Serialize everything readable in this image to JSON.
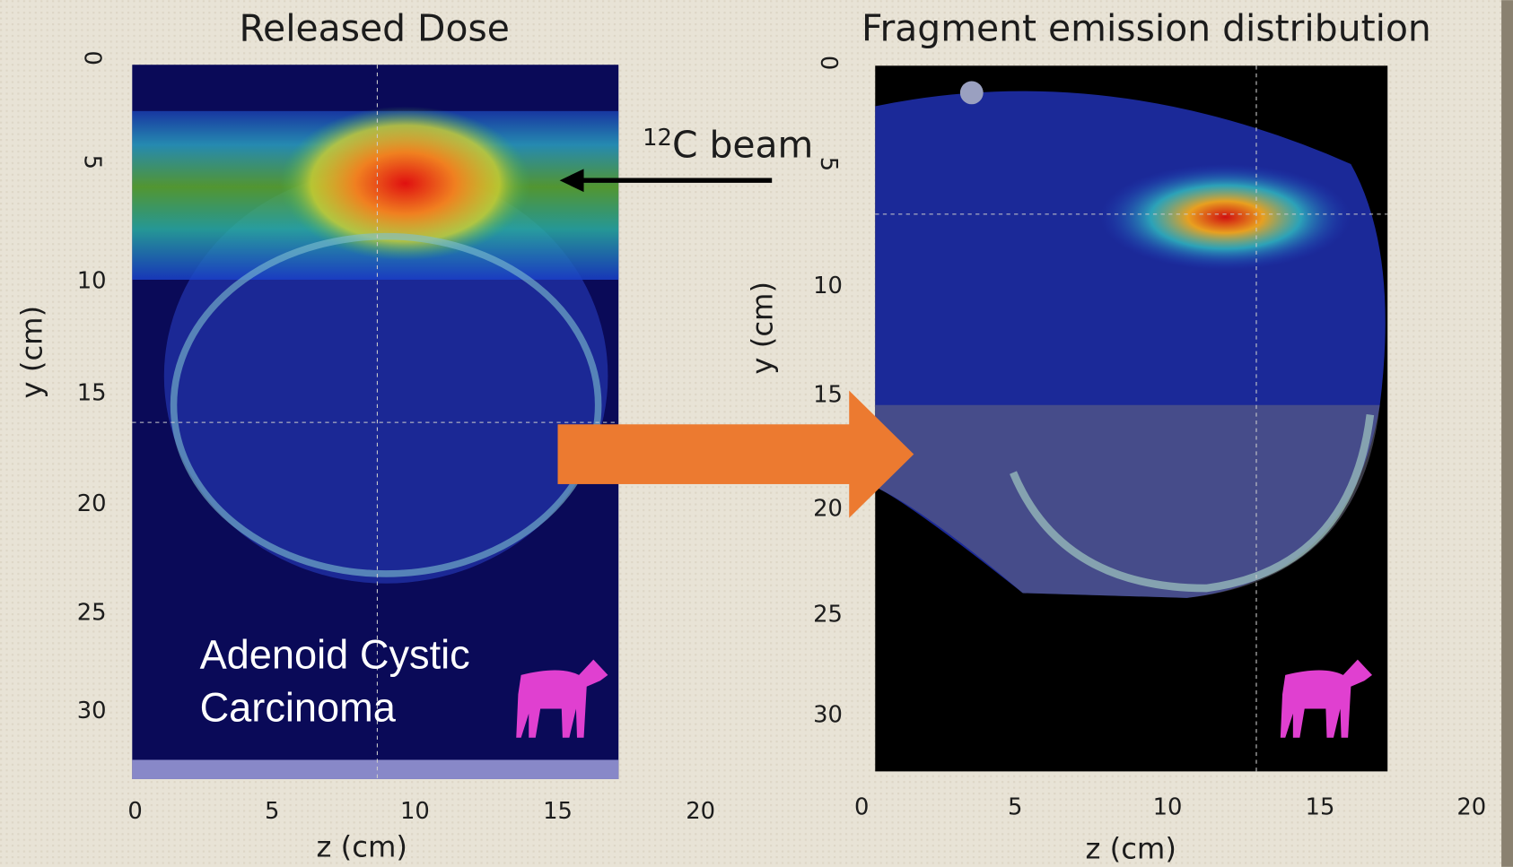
{
  "left_panel": {
    "title": "Released Dose",
    "y_axis_label": "y  (cm)",
    "x_axis_label": "z (cm)",
    "y_tick_labels": [
      "0",
      "5",
      "10",
      "15",
      "20",
      "25",
      "30"
    ],
    "x_tick_labels": [
      "0",
      "5",
      "10",
      "15",
      "20"
    ],
    "annotation": [
      "Adenoid Cystic",
      "Carcinoma"
    ]
  },
  "beam_label": {
    "superscript": "12",
    "text": "C beam"
  },
  "right_panel": {
    "title": "Fragment emission distribution",
    "y_axis_label": "y  (cm)",
    "x_axis_label": "z (cm)",
    "y_tick_labels": [
      "0",
      "5",
      "10",
      "15",
      "20",
      "25",
      "30"
    ],
    "x_tick_labels": [
      "0",
      "5",
      "10",
      "15",
      "20"
    ]
  }
}
